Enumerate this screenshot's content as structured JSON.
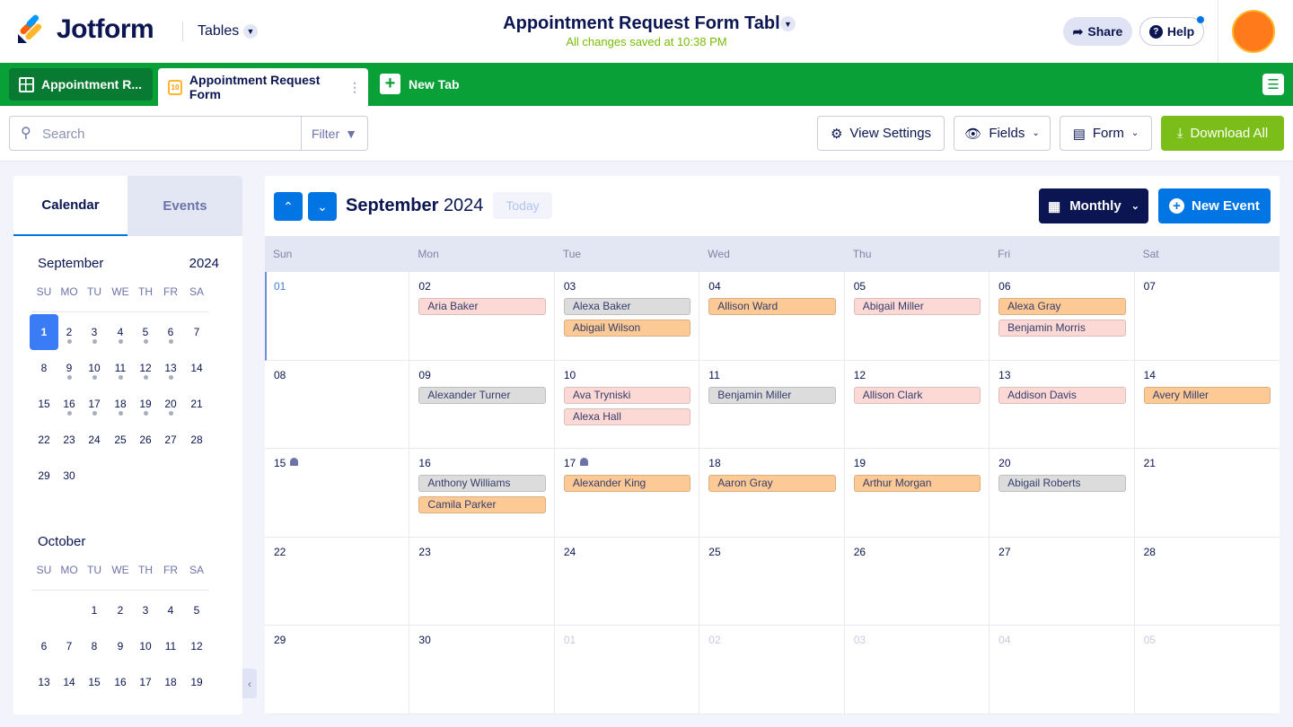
{
  "header": {
    "logo": "Jotform",
    "tables": "Tables",
    "title": "Appointment Request Form Table",
    "status": "All changes saved at 10:38 PM",
    "share": "Share",
    "help": "Help"
  },
  "tabs": {
    "items": [
      "Appointment R...",
      "Appointment Request Form"
    ],
    "form_icon": "10",
    "new_tab": "New Tab"
  },
  "toolbar": {
    "search": "Search",
    "filter": "Filter",
    "view_settings": "View Settings",
    "fields": "Fields",
    "form": "Form",
    "download": "Download All"
  },
  "sidebar": {
    "tabs": [
      "Calendar",
      "Events"
    ],
    "months": [
      {
        "name": "September",
        "year": "2024",
        "weekdays": [
          "SU",
          "MO",
          "TU",
          "WE",
          "TH",
          "FR",
          "SA"
        ],
        "days": [
          1,
          2,
          3,
          4,
          5,
          6,
          7,
          8,
          9,
          10,
          11,
          12,
          13,
          14,
          15,
          16,
          17,
          18,
          19,
          20,
          21,
          22,
          23,
          24,
          25,
          26,
          27,
          28,
          29,
          30
        ],
        "selected": 1,
        "marked_days": [
          2,
          3,
          4,
          5,
          6,
          9,
          10,
          11,
          12,
          13,
          16,
          17,
          18,
          19,
          20
        ]
      },
      {
        "name": "October",
        "weekdays": [
          "SU",
          "MO",
          "TU",
          "WE",
          "TH",
          "FR",
          "SA"
        ],
        "days": [
          null,
          null,
          1,
          2,
          3,
          4,
          5,
          6,
          7,
          8,
          9,
          10,
          11,
          12,
          13,
          14,
          15,
          16,
          17,
          18,
          19
        ],
        "marked_days": []
      }
    ]
  },
  "calendar": {
    "month": "September",
    "year": "2024",
    "today": "Today",
    "view": "Monthly",
    "new_event": "New Event",
    "weekdays": [
      "Sun",
      "Mon",
      "Tue",
      "Wed",
      "Thu",
      "Fri",
      "Sat"
    ],
    "weeks": [
      [
        {
          "day": "01",
          "today": true,
          "events": []
        },
        {
          "day": "02",
          "events": [
            {
              "name": "Aria Baker",
              "color": "#fdd9d6"
            }
          ]
        },
        {
          "day": "03",
          "events": [
            {
              "name": "Alexa Baker",
              "color": "#dcdcdc"
            },
            {
              "name": "Abigail Wilson",
              "color": "#fdc994"
            }
          ]
        },
        {
          "day": "04",
          "events": [
            {
              "name": "Allison Ward",
              "color": "#fdc994"
            }
          ]
        },
        {
          "day": "05",
          "events": [
            {
              "name": "Abigail Miller",
              "color": "#fdd9d6"
            }
          ]
        },
        {
          "day": "06",
          "events": [
            {
              "name": "Alexa Gray",
              "color": "#fdc994"
            },
            {
              "name": "Benjamin Morris",
              "color": "#fdd9d6"
            }
          ]
        },
        {
          "day": "07",
          "events": []
        }
      ],
      [
        {
          "day": "08",
          "events": []
        },
        {
          "day": "09",
          "events": [
            {
              "name": "Alexander Turner",
              "color": "#dcdcdc"
            }
          ]
        },
        {
          "day": "10",
          "events": [
            {
              "name": "Ava Tryniski",
              "color": "#fdd9d6"
            },
            {
              "name": "Alexa Hall",
              "color": "#fdd9d6"
            }
          ]
        },
        {
          "day": "11",
          "events": [
            {
              "name": "Benjamin Miller",
              "color": "#dcdcdc"
            }
          ]
        },
        {
          "day": "12",
          "events": [
            {
              "name": "Allison Clark",
              "color": "#fdd9d6"
            }
          ]
        },
        {
          "day": "13",
          "events": [
            {
              "name": "Addison Davis",
              "color": "#fdd9d6"
            }
          ]
        },
        {
          "day": "14",
          "events": [
            {
              "name": "Avery Miller",
              "color": "#fdc994"
            }
          ]
        }
      ],
      [
        {
          "day": "15",
          "bell": true,
          "events": []
        },
        {
          "day": "16",
          "events": [
            {
              "name": "Anthony Williams",
              "color": "#dcdcdc"
            },
            {
              "name": "Camila Parker",
              "color": "#fdc994"
            }
          ]
        },
        {
          "day": "17",
          "bell": true,
          "events": [
            {
              "name": "Alexander King",
              "color": "#fdc994"
            }
          ]
        },
        {
          "day": "18",
          "events": [
            {
              "name": "Aaron Gray",
              "color": "#fdc994"
            }
          ]
        },
        {
          "day": "19",
          "events": [
            {
              "name": "Arthur Morgan",
              "color": "#fdc994"
            }
          ]
        },
        {
          "day": "20",
          "events": [
            {
              "name": "Abigail Roberts",
              "color": "#dcdcdc"
            }
          ]
        },
        {
          "day": "21",
          "events": []
        }
      ],
      [
        {
          "day": "22",
          "events": []
        },
        {
          "day": "23",
          "events": []
        },
        {
          "day": "24",
          "events": []
        },
        {
          "day": "25",
          "events": []
        },
        {
          "day": "26",
          "events": []
        },
        {
          "day": "27",
          "events": []
        },
        {
          "day": "28",
          "events": []
        }
      ],
      [
        {
          "day": "29",
          "events": []
        },
        {
          "day": "30",
          "events": []
        },
        {
          "day": "01",
          "other_month": true,
          "events": []
        },
        {
          "day": "02",
          "other_month": true,
          "events": []
        },
        {
          "day": "03",
          "other_month": true,
          "events": []
        },
        {
          "day": "04",
          "other_month": true,
          "events": []
        },
        {
          "day": "05",
          "other_month": true,
          "events": []
        }
      ]
    ]
  }
}
